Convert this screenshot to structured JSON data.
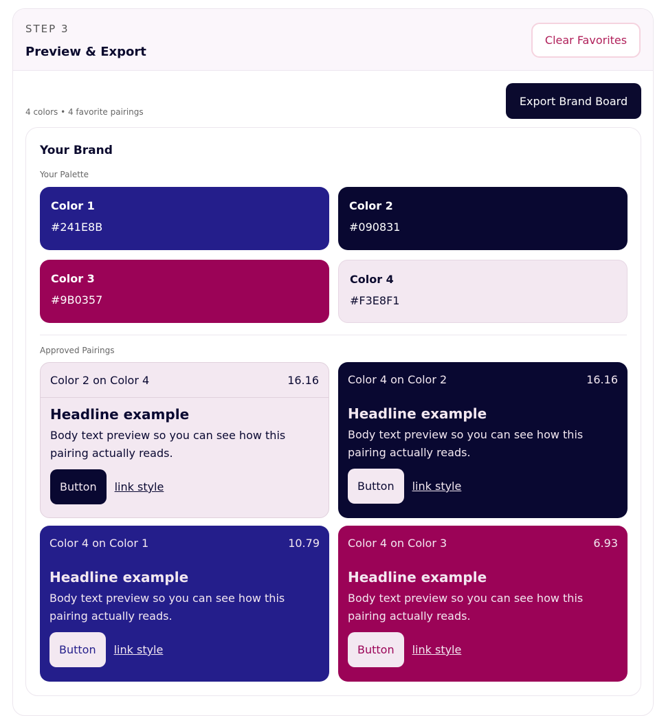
{
  "header": {
    "step": "STEP 3",
    "title": "Preview & Export",
    "clear_label": "Clear Favorites"
  },
  "toolbar": {
    "export_label": "Export Brand Board",
    "meta": "4 colors • 4 favorite pairings"
  },
  "brand": {
    "title": "Your Brand",
    "palette_label": "Your Palette",
    "pairings_label": "Approved Pairings"
  },
  "palette": [
    {
      "name": "Color 1",
      "hex": "#241E8B",
      "text": "#ffffff"
    },
    {
      "name": "Color 2",
      "hex": "#090831",
      "text": "#ffffff"
    },
    {
      "name": "Color 3",
      "hex": "#9B0357",
      "text": "#ffffff"
    },
    {
      "name": "Color 4",
      "hex": "#F3E8F1",
      "text": "#0b0a2e"
    }
  ],
  "pairings": [
    {
      "label": "Color 2 on Color 4",
      "ratio": "16.16",
      "bg": "#F3E8F1",
      "fg": "#090831",
      "btn_bg": "#090831",
      "btn_fg": "#F3E8F1",
      "headline": "Headline example",
      "body": "Body text preview so you can see how this pairing actually reads.",
      "button": "Button",
      "link": "link style"
    },
    {
      "label": "Color 4 on Color 2",
      "ratio": "16.16",
      "bg": "#090831",
      "fg": "#F3E8F1",
      "btn_bg": "#F3E8F1",
      "btn_fg": "#090831",
      "headline": "Headline example",
      "body": "Body text preview so you can see how this pairing actually reads.",
      "button": "Button",
      "link": "link style"
    },
    {
      "label": "Color 4 on Color 1",
      "ratio": "10.79",
      "bg": "#241E8B",
      "fg": "#F3E8F1",
      "btn_bg": "#F3E8F1",
      "btn_fg": "#241E8B",
      "headline": "Headline example",
      "body": "Body text preview so you can see how this pairing actually reads.",
      "button": "Button",
      "link": "link style"
    },
    {
      "label": "Color 4 on Color 3",
      "ratio": "6.93",
      "bg": "#9B0357",
      "fg": "#F3E8F1",
      "btn_bg": "#F3E8F1",
      "btn_fg": "#9B0357",
      "headline": "Headline example",
      "body": "Body text preview so you can see how this pairing actually reads.",
      "button": "Button",
      "link": "link style"
    }
  ]
}
